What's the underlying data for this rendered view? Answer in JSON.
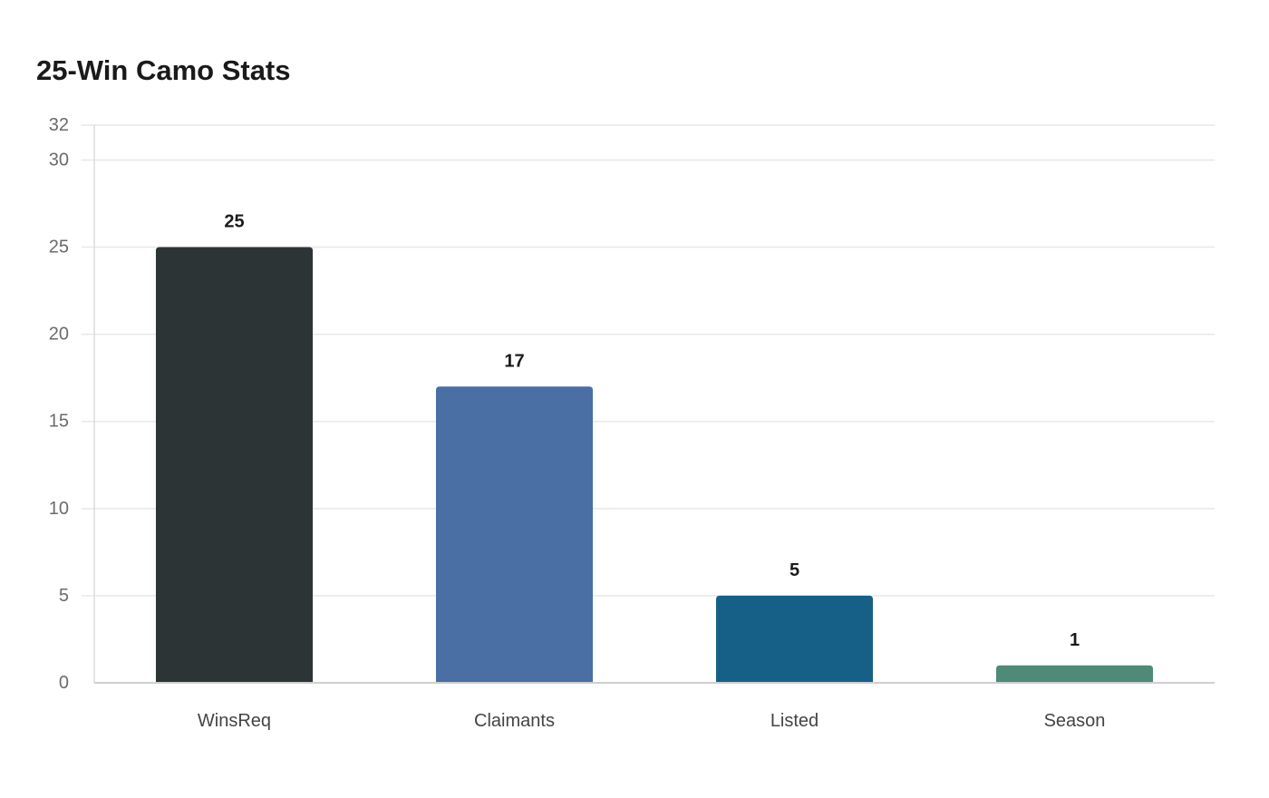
{
  "chart_data": {
    "type": "bar",
    "title": "25-Win Camo Stats",
    "xlabel": "",
    "ylabel": "",
    "categories": [
      "WinsReq",
      "Claimants",
      "Listed",
      "Season"
    ],
    "values": [
      25,
      17,
      5,
      1
    ],
    "value_labels": [
      "25",
      "17",
      "5",
      "1"
    ],
    "colors": [
      "#2d3436",
      "#4a6fa5",
      "#166088",
      "#4f8a78"
    ],
    "ylim": [
      0,
      32
    ],
    "yticks": [
      0,
      5,
      10,
      15,
      20,
      25,
      30,
      32
    ],
    "ytick_labels": [
      "0",
      "5",
      "10",
      "15",
      "20",
      "25",
      "30",
      "32"
    ],
    "grid": true,
    "legend": "none"
  }
}
